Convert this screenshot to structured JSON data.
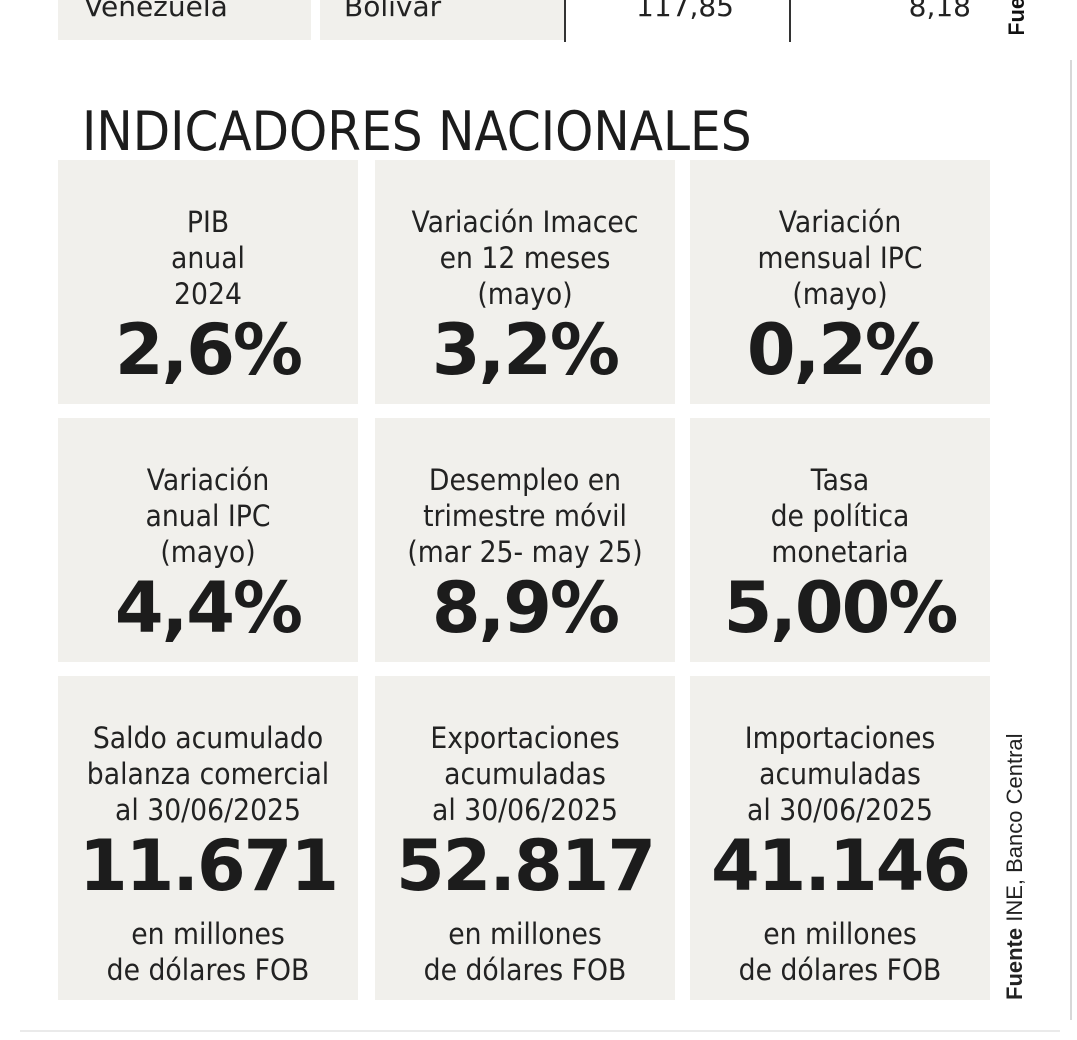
{
  "top_row": {
    "country": "Venezuela",
    "currency": "Bolívar",
    "value_1": "117,85",
    "value_2": "8,18",
    "source_fragment": "Fue"
  },
  "section_title": "INDICADORES NACIONALES",
  "cards": [
    {
      "label": "PIB\nanual\n2024",
      "value": "2,6%"
    },
    {
      "label": "Variación Imacec\nen 12 meses\n(mayo)",
      "value": "3,2%"
    },
    {
      "label": "Variación\nmensual IPC\n(mayo)",
      "value": "0,2%"
    },
    {
      "label": "Variación\nanual IPC\n(mayo)",
      "value": "4,4%"
    },
    {
      "label": "Desempleo en\ntrimestre móvil\n(mar 25- may 25)",
      "value": "8,9%"
    },
    {
      "label": "Tasa\nde política\nmonetaria",
      "value": "5,00%"
    },
    {
      "label": "Saldo acumulado\nbalanza comercial\nal 30/06/2025",
      "value": "11.671",
      "unit": "en millones\nde dólares FOB"
    },
    {
      "label": "Exportaciones\nacumuladas\nal 30/06/2025",
      "value": "52.817",
      "unit": "en millones\nde dólares FOB"
    },
    {
      "label": "Importaciones\nacumuladas\nal 30/06/2025",
      "value": "41.146",
      "unit": "en millones\nde dólares FOB"
    }
  ],
  "source": {
    "label": "Fuente",
    "text": " INE, Banco Central"
  }
}
